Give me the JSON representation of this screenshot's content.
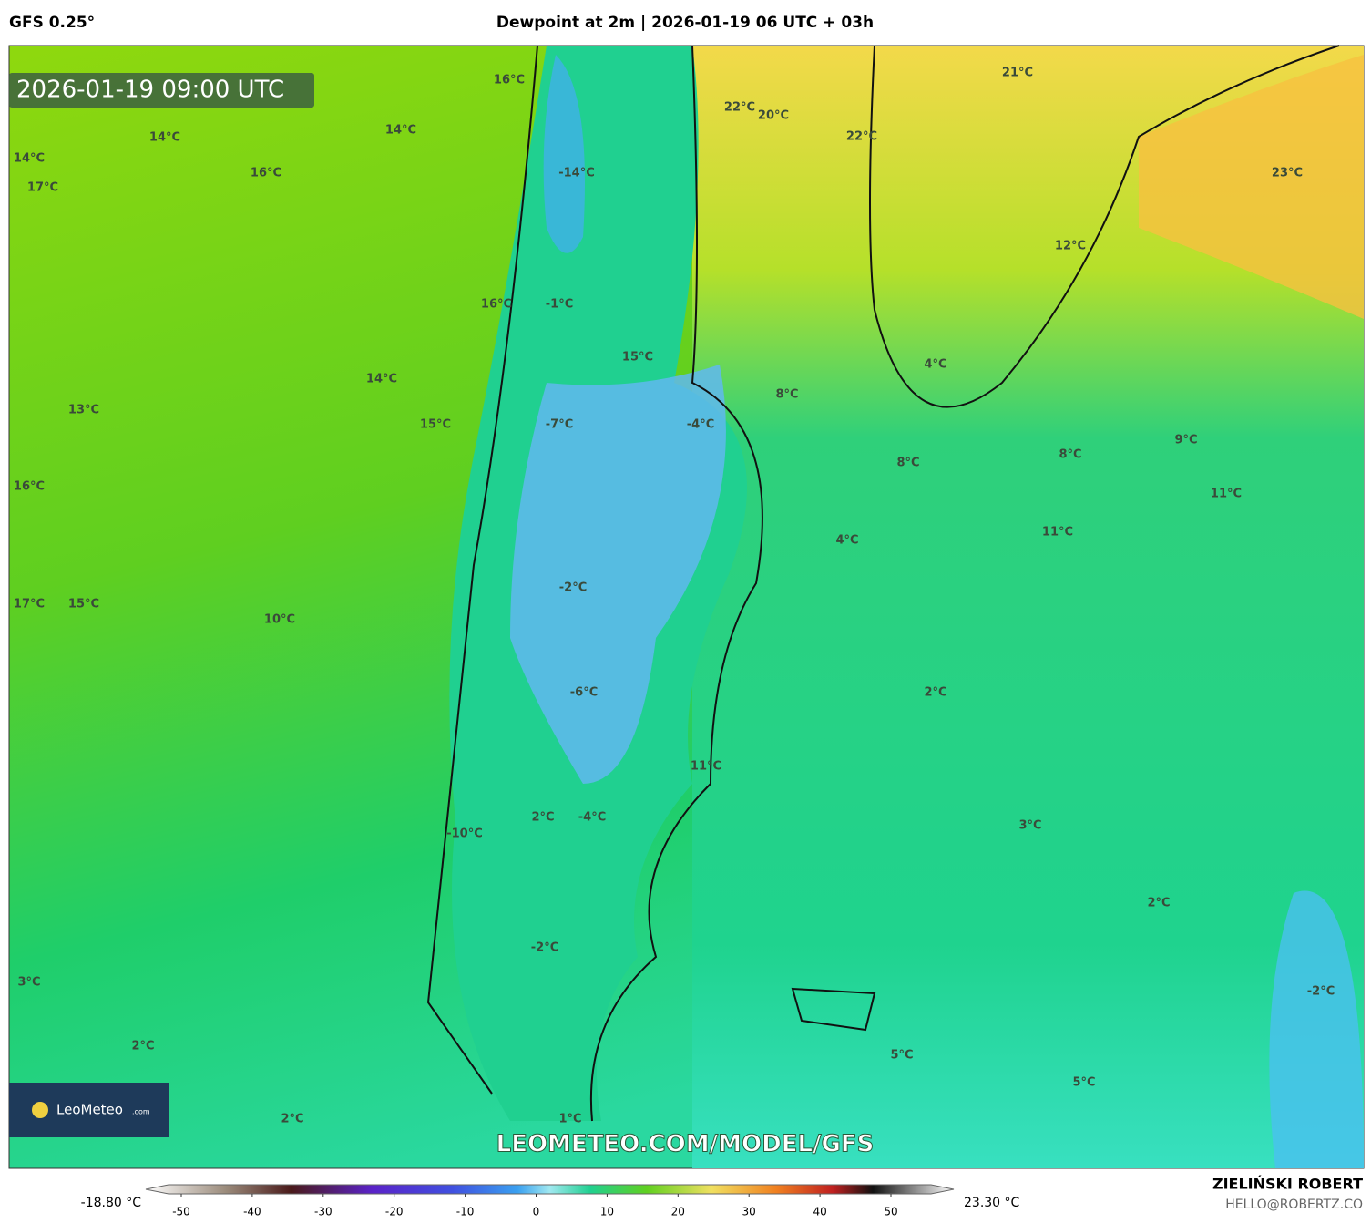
{
  "header": {
    "model": "GFS 0.25°",
    "title": "Dewpoint at 2m | 2026-01-19 06 UTC + 03h"
  },
  "map": {
    "valid_time": "2026-01-19 09:00 UTC",
    "watermark": "LEOMETEO.COM/MODEL/GFS",
    "logo": {
      "name": "LeoMeteo",
      "suffix": ".com"
    },
    "labels": [
      "16°C",
      "14°C",
      "14°C",
      "14°C",
      "17°C",
      "16°C",
      "16°C",
      "14°C",
      "13°C",
      "15°C",
      "16°C",
      "17°C",
      "15°C",
      "10°C",
      "-14°C",
      "-1°C",
      "15°C",
      "-7°C",
      "-4°C",
      "-2°C",
      "-6°C",
      "11°C",
      "2°C",
      "-4°C",
      "-10°C",
      "-2°C",
      "1°C",
      "22°C",
      "20°C",
      "22°C",
      "21°C",
      "23°C",
      "12°C",
      "4°C",
      "8°C",
      "8°C",
      "8°C",
      "9°C",
      "11°C",
      "11°C",
      "4°C",
      "2°C",
      "3°C",
      "2°C",
      "-2°C",
      "3°C",
      "2°C",
      "2°C",
      "5°C",
      "5°C"
    ]
  },
  "colorbar": {
    "min_label": "-18.80 °C",
    "max_label": "23.30 °C",
    "ticks": [
      -50,
      -40,
      -30,
      -20,
      -10,
      0,
      10,
      20,
      30,
      40,
      50
    ]
  },
  "credits": {
    "author": "ZIELIŃSKI ROBERT",
    "contact": "HELLO@ROBERTZ.CO"
  }
}
